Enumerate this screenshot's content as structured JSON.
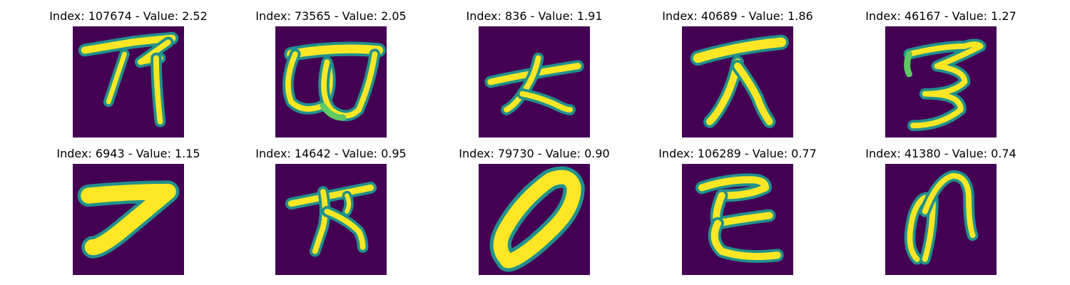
{
  "grid": {
    "rows": 2,
    "cols": 5
  },
  "colors": {
    "background": "#440154",
    "stroke_edge": "#21918c",
    "stroke_mid": "#5ec962",
    "stroke_core": "#fde725"
  },
  "panels": [
    {
      "title": "Index: 107674 - Value: 2.52",
      "index": 107674,
      "value": 2.52
    },
    {
      "title": "Index: 73565 - Value: 2.05",
      "index": 73565,
      "value": 2.05
    },
    {
      "title": "Index: 836 - Value: 1.91",
      "index": 836,
      "value": 1.91
    },
    {
      "title": "Index: 40689 - Value: 1.86",
      "index": 40689,
      "value": 1.86
    },
    {
      "title": "Index: 46167 - Value: 1.27",
      "index": 46167,
      "value": 1.27
    },
    {
      "title": "Index: 6943 - Value: 1.15",
      "index": 6943,
      "value": 1.15
    },
    {
      "title": "Index: 14642 - Value: 0.95",
      "index": 14642,
      "value": 0.95
    },
    {
      "title": "Index: 79730 - Value: 0.90",
      "index": 79730,
      "value": 0.9
    },
    {
      "title": "Index: 106289 - Value: 0.77",
      "index": 106289,
      "value": 0.77
    },
    {
      "title": "Index: 41380 - Value: 0.74",
      "index": 41380,
      "value": 0.74
    }
  ]
}
